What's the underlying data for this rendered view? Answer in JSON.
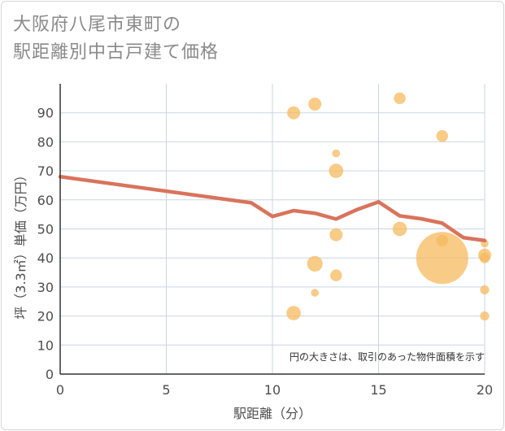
{
  "chart_data": {
    "type": "scatter",
    "title_lines": [
      "大阪府八尾市東町の",
      "駅距離別中古戸建て価格"
    ],
    "xlabel": "駅距離（分）",
    "ylabel": "坪（3.3㎡）単価（万円）",
    "xlim": [
      0,
      20
    ],
    "ylim": [
      0,
      100
    ],
    "xticks": [
      0,
      5,
      10,
      15,
      20
    ],
    "yticks": [
      0,
      10,
      20,
      30,
      40,
      50,
      60,
      70,
      80,
      90
    ],
    "grid": true,
    "note": "円の大きさは、取引のあった物件面積を示す",
    "colors": {
      "bubble": "#f5b95f",
      "line": "#d9735c",
      "grid": "#c9d6e3"
    },
    "bubbles": [
      {
        "x": 11,
        "y": 90,
        "size": 1
      },
      {
        "x": 11,
        "y": 21,
        "size": 1.1
      },
      {
        "x": 12,
        "y": 93,
        "size": 1
      },
      {
        "x": 12,
        "y": 38,
        "size": 1.2
      },
      {
        "x": 12,
        "y": 28,
        "size": 0.6
      },
      {
        "x": 13,
        "y": 76,
        "size": 0.6
      },
      {
        "x": 13,
        "y": 70,
        "size": 1.1
      },
      {
        "x": 13,
        "y": 48,
        "size": 1
      },
      {
        "x": 13,
        "y": 34,
        "size": 0.9
      },
      {
        "x": 16,
        "y": 95,
        "size": 0.9
      },
      {
        "x": 16,
        "y": 50,
        "size": 1.1
      },
      {
        "x": 18,
        "y": 82,
        "size": 0.9
      },
      {
        "x": 18,
        "y": 46,
        "size": 0.9
      },
      {
        "x": 18,
        "y": 40,
        "size": 4
      },
      {
        "x": 20,
        "y": 45,
        "size": 0.6
      },
      {
        "x": 20,
        "y": 41,
        "size": 1
      },
      {
        "x": 20,
        "y": 40,
        "size": 0.8
      },
      {
        "x": 20,
        "y": 29,
        "size": 0.7
      },
      {
        "x": 20,
        "y": 20,
        "size": 0.7
      }
    ],
    "trend_line": {
      "x": [
        0,
        9,
        10,
        11,
        12,
        13,
        14,
        15,
        16,
        17,
        18,
        19,
        20
      ],
      "y": [
        68,
        59,
        54.3,
        56.3,
        55.4,
        53.4,
        56.7,
        59.3,
        54.5,
        53.5,
        52,
        47,
        46
      ]
    }
  }
}
